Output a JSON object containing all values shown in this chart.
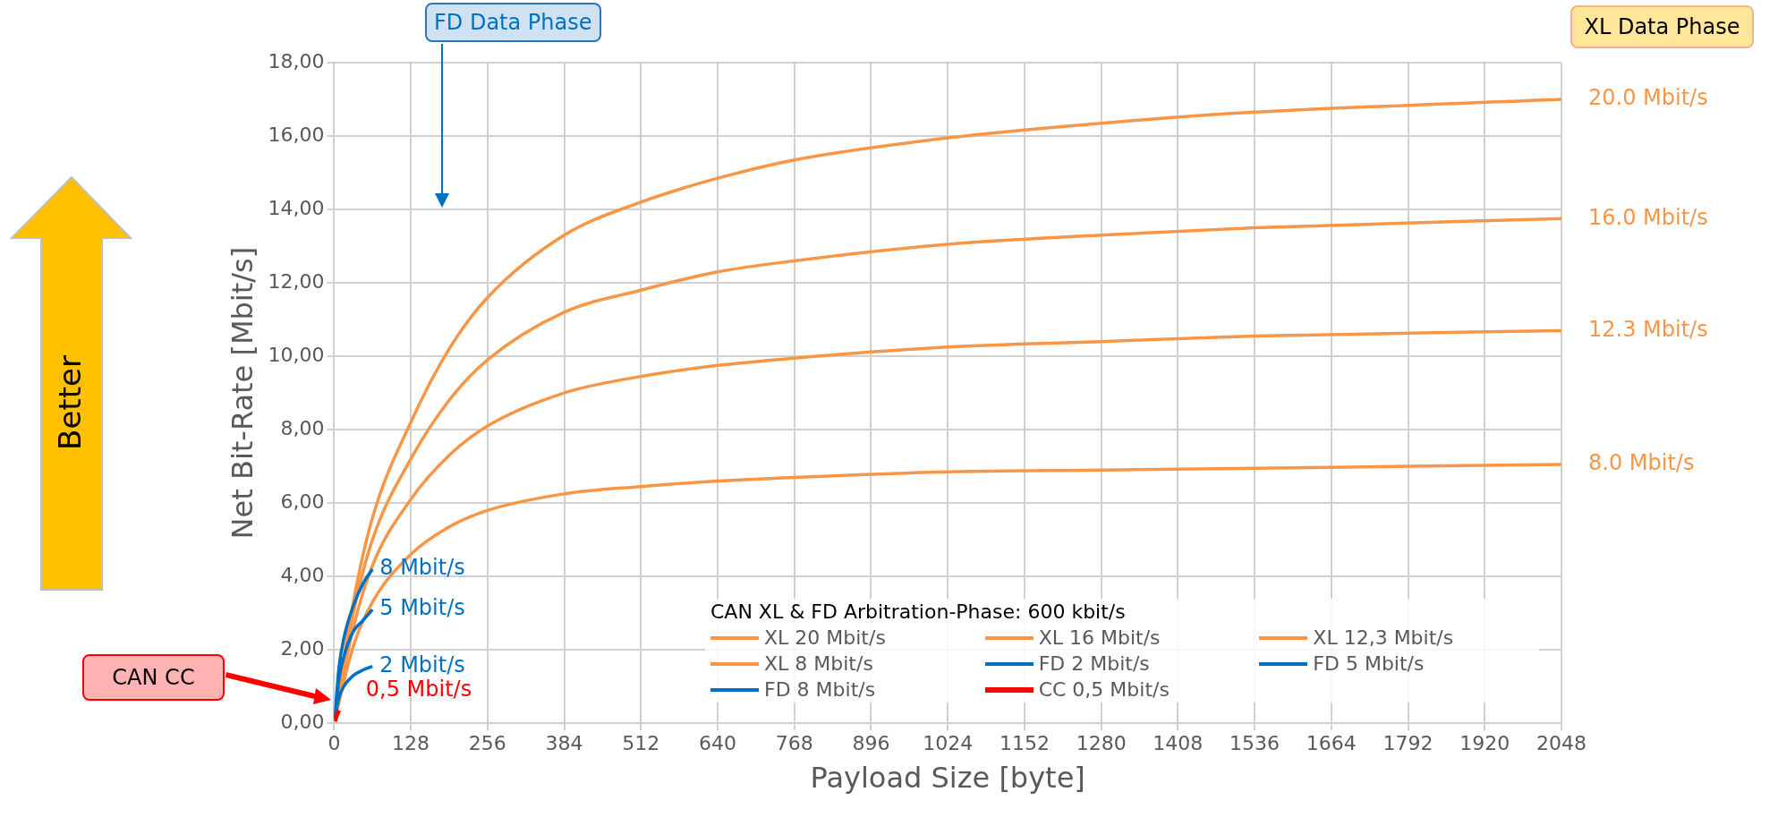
{
  "chart_data": {
    "type": "line",
    "xlabel": "Payload Size [byte]",
    "ylabel": "Net Bit-Rate [Mbit/s]",
    "legend_title": "CAN XL & FD Arbitration-Phase: 600 kbit/s",
    "legend": "bottom right",
    "grid": true,
    "marker": "none",
    "line_style": "solid",
    "xlim": [
      0,
      2048
    ],
    "xticks": [
      0,
      128,
      256,
      384,
      512,
      640,
      768,
      896,
      1024,
      1152,
      1280,
      1408,
      1536,
      1664,
      1792,
      1920,
      2048
    ],
    "ylim": [
      0,
      18
    ],
    "yticks": [
      {
        "value": 0,
        "label": "0,00"
      },
      {
        "value": 2,
        "label": "2,00"
      },
      {
        "value": 4,
        "label": "4,00"
      },
      {
        "value": 6,
        "label": "6,00"
      },
      {
        "value": 8,
        "label": "8,00"
      },
      {
        "value": 10,
        "label": "10,00"
      },
      {
        "value": 12,
        "label": "12,00"
      },
      {
        "value": 14,
        "label": "14,00"
      },
      {
        "value": 16,
        "label": "16,00"
      },
      {
        "value": 18,
        "label": "18,00"
      }
    ],
    "series": [
      {
        "name": "XL 20 Mbit/s",
        "color": "#f79646",
        "x": [
          1,
          32,
          64,
          128,
          192,
          256,
          384,
          512,
          640,
          768,
          1024,
          1280,
          1536,
          2048
        ],
        "values": [
          0.2,
          3.3,
          5.6,
          8.2,
          10.2,
          11.6,
          13.3,
          14.2,
          14.85,
          15.35,
          15.95,
          16.35,
          16.65,
          17.0
        ]
      },
      {
        "name": "XL 16 Mbit/s",
        "color": "#f79646",
        "x": [
          1,
          32,
          64,
          128,
          192,
          256,
          384,
          512,
          640,
          768,
          1024,
          1280,
          1536,
          2048
        ],
        "values": [
          0.2,
          3.0,
          5.0,
          7.2,
          8.8,
          9.9,
          11.2,
          11.8,
          12.3,
          12.6,
          13.05,
          13.3,
          13.5,
          13.75
        ]
      },
      {
        "name": "XL 12,3 Mbit/s",
        "color": "#f79646",
        "x": [
          1,
          32,
          64,
          128,
          192,
          256,
          384,
          512,
          640,
          768,
          1024,
          1280,
          1536,
          2048
        ],
        "values": [
          0.15,
          2.6,
          4.3,
          6.1,
          7.3,
          8.1,
          9.0,
          9.45,
          9.75,
          9.95,
          10.25,
          10.4,
          10.55,
          10.7
        ]
      },
      {
        "name": "XL 8 Mbit/s",
        "color": "#f79646",
        "x": [
          1,
          32,
          64,
          128,
          192,
          256,
          384,
          512,
          640,
          768,
          1024,
          1280,
          1536,
          2048
        ],
        "values": [
          0.1,
          2.1,
          3.3,
          4.6,
          5.35,
          5.8,
          6.25,
          6.45,
          6.6,
          6.7,
          6.85,
          6.9,
          6.95,
          7.05
        ]
      },
      {
        "name": "FD 2 Mbit/s",
        "color": "#0070c0",
        "x": [
          1,
          8,
          16,
          32,
          48,
          64
        ],
        "values": [
          0.1,
          0.7,
          1.0,
          1.3,
          1.45,
          1.55
        ]
      },
      {
        "name": "FD 5 Mbit/s",
        "color": "#0070c0",
        "x": [
          1,
          8,
          16,
          32,
          48,
          64
        ],
        "values": [
          0.1,
          1.2,
          1.8,
          2.5,
          2.8,
          3.1
        ]
      },
      {
        "name": "FD 8 Mbit/s",
        "color": "#0070c0",
        "x": [
          1,
          8,
          16,
          32,
          48,
          64
        ],
        "values": [
          0.1,
          1.5,
          2.3,
          3.2,
          3.8,
          4.2
        ]
      },
      {
        "name": "CC 0,5 Mbit/s",
        "color": "#ff0000",
        "x": [
          1,
          4,
          8
        ],
        "values": [
          0.05,
          0.2,
          0.35
        ]
      }
    ],
    "annotations": [
      {
        "text": "20.0 Mbit/s",
        "x": 2048,
        "y": 17.0
      },
      {
        "text": "16.0 Mbit/s",
        "x": 2048,
        "y": 13.75
      },
      {
        "text": "12.3 Mbit/s",
        "x": 2048,
        "y": 10.7
      },
      {
        "text": "8.0 Mbit/s",
        "x": 2048,
        "y": 7.05
      },
      {
        "text": "8 Mbit/s",
        "x": 64,
        "y": 4.2
      },
      {
        "text": "5 Mbit/s",
        "x": 64,
        "y": 3.1
      },
      {
        "text": "2 Mbit/s",
        "x": 64,
        "y": 1.55
      },
      {
        "text": "0,5 Mbit/s",
        "x": 8,
        "y": 0.35
      },
      "FD Data Phase",
      "XL Data Phase",
      "CAN CC",
      "Better"
    ]
  }
}
